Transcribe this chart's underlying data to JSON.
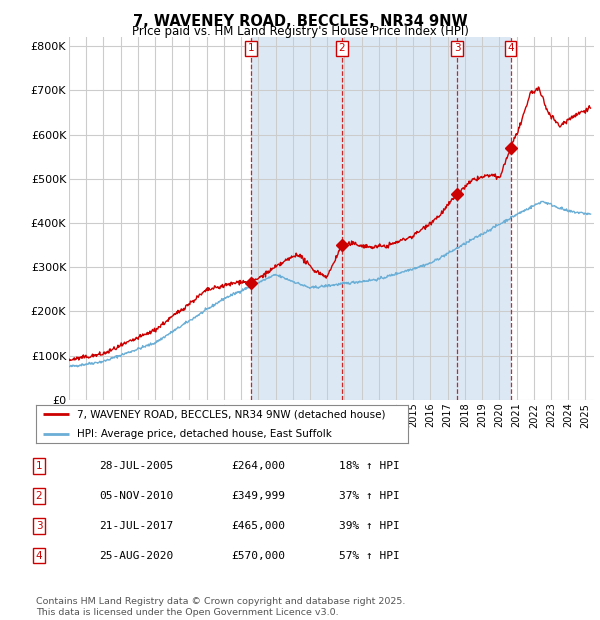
{
  "title": "7, WAVENEY ROAD, BECCLES, NR34 9NW",
  "subtitle": "Price paid vs. HM Land Registry's House Price Index (HPI)",
  "background_color": "#ffffff",
  "plot_background_color": "#ffffff",
  "shade_color": "#dce9f5",
  "grid_color": "#cccccc",
  "ylim": [
    0,
    820000
  ],
  "yticks": [
    0,
    100000,
    200000,
    300000,
    400000,
    500000,
    600000,
    700000,
    800000
  ],
  "ytick_labels": [
    "£0",
    "£100K",
    "£200K",
    "£300K",
    "£400K",
    "£500K",
    "£600K",
    "£700K",
    "£800K"
  ],
  "sale_dates": [
    2005.57,
    2010.84,
    2017.55,
    2020.65
  ],
  "sale_prices": [
    264000,
    349999,
    465000,
    570000
  ],
  "sale_labels": [
    "1",
    "2",
    "3",
    "4"
  ],
  "legend_line1": "7, WAVENEY ROAD, BECCLES, NR34 9NW (detached house)",
  "legend_line2": "HPI: Average price, detached house, East Suffolk",
  "table_data": [
    [
      "1",
      "28-JUL-2005",
      "£264,000",
      "18% ↑ HPI"
    ],
    [
      "2",
      "05-NOV-2010",
      "£349,999",
      "37% ↑ HPI"
    ],
    [
      "3",
      "21-JUL-2017",
      "£465,000",
      "39% ↑ HPI"
    ],
    [
      "4",
      "25-AUG-2020",
      "£570,000",
      "57% ↑ HPI"
    ]
  ],
  "footer": "Contains HM Land Registry data © Crown copyright and database right 2025.\nThis data is licensed under the Open Government Licence v3.0.",
  "hpi_color": "#6baed6",
  "price_color": "#cc0000",
  "xmin": 1995,
  "xmax": 2025.5
}
